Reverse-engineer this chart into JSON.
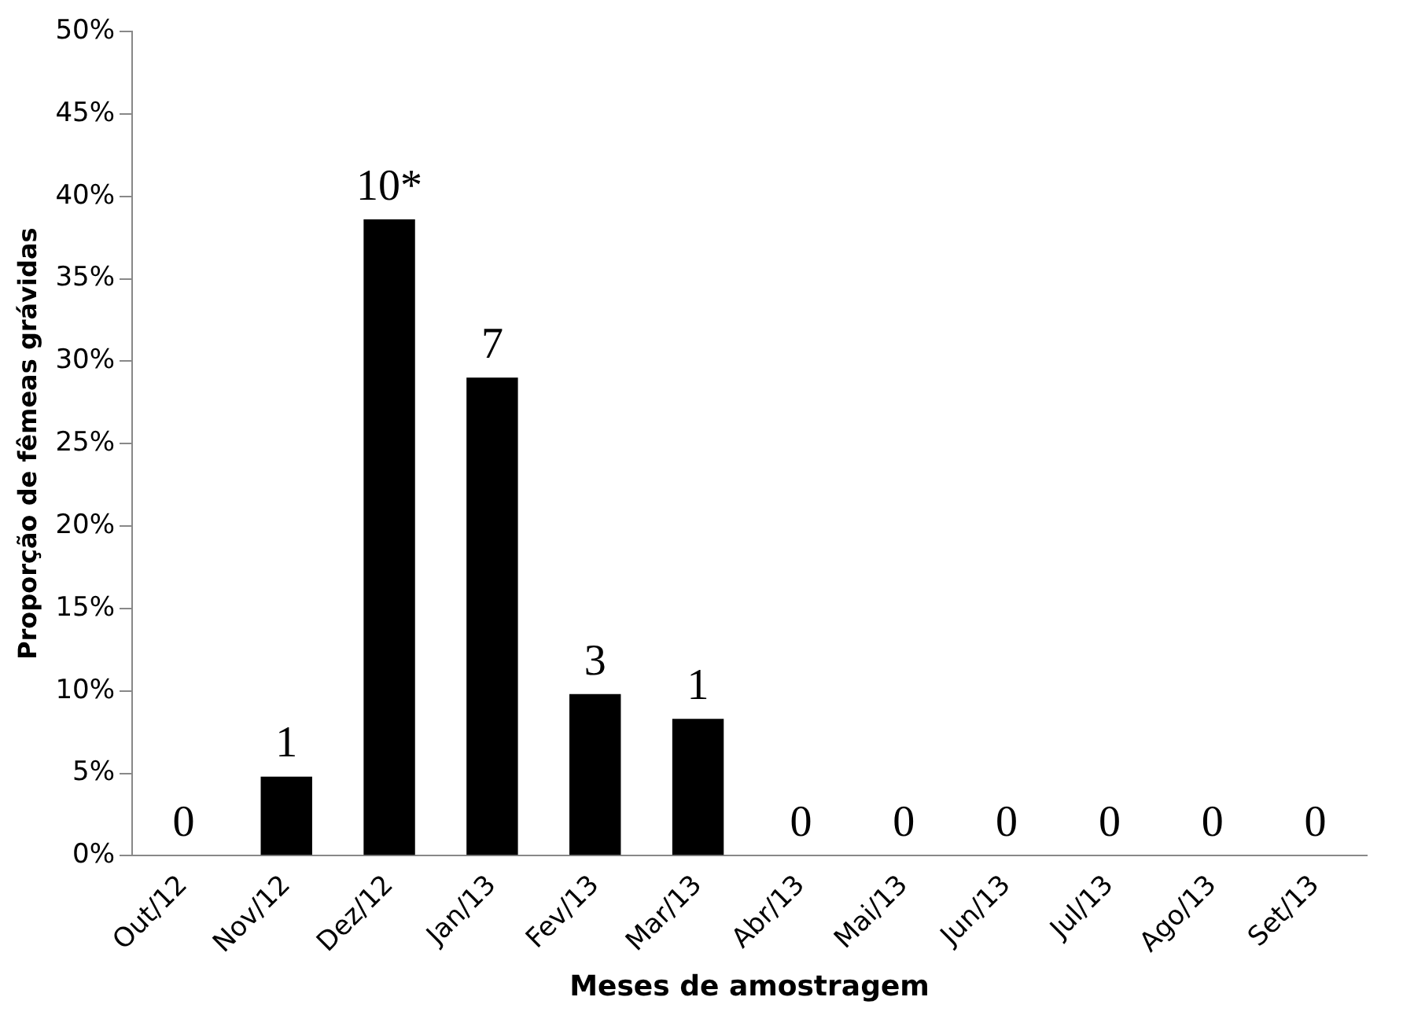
{
  "chart_data": {
    "type": "bar",
    "xlabel": "Meses de amostragem",
    "ylabel": "Proporção de fêmeas grávidas",
    "categories": [
      "Out/12",
      "Nov/12",
      "Dez/12",
      "Jan/13",
      "Fev/13",
      "Mar/13",
      "Abr/13",
      "Mai/13",
      "Jun/13",
      "Jul/13",
      "Ago/13",
      "Set/13"
    ],
    "values": [
      0,
      4.8,
      38.6,
      29,
      9.8,
      8.3,
      0,
      0,
      0,
      0,
      0,
      0
    ],
    "annotations": [
      {
        "text": "0",
        "x": "Out/12",
        "y": 0
      },
      {
        "text": "1",
        "x": "Nov/12",
        "y": 4.8
      },
      {
        "text": "10*",
        "x": "Dez/12",
        "y": 38.6
      },
      {
        "text": "7",
        "x": "Jan/13",
        "y": 29
      },
      {
        "text": "3",
        "x": "Fev/13",
        "y": 9.8
      },
      {
        "text": "1",
        "x": "Mar/13",
        "y": 8.3
      },
      {
        "text": "0",
        "x": "Abr/13",
        "y": 0
      },
      {
        "text": "0",
        "x": "Mai/13",
        "y": 0
      },
      {
        "text": "0",
        "x": "Jun/13",
        "y": 0
      },
      {
        "text": "0",
        "x": "Jul/13",
        "y": 0
      },
      {
        "text": "0",
        "x": "Ago/13",
        "y": 0
      },
      {
        "text": "0",
        "x": "Set/13",
        "y": 0
      }
    ],
    "color": "#000000",
    "ylim": [
      0,
      50
    ],
    "yticks": [
      {
        "value": 0,
        "label": "0%"
      },
      {
        "value": 5,
        "label": "5%"
      },
      {
        "value": 10,
        "label": "10%"
      },
      {
        "value": 15,
        "label": "15%"
      },
      {
        "value": 20,
        "label": "20%"
      },
      {
        "value": 25,
        "label": "25%"
      },
      {
        "value": 30,
        "label": "30%"
      },
      {
        "value": 35,
        "label": "35%"
      },
      {
        "value": 40,
        "label": "40%"
      },
      {
        "value": 45,
        "label": "45%"
      },
      {
        "value": 50,
        "label": "50%"
      }
    ],
    "grid": false,
    "legend": false
  }
}
